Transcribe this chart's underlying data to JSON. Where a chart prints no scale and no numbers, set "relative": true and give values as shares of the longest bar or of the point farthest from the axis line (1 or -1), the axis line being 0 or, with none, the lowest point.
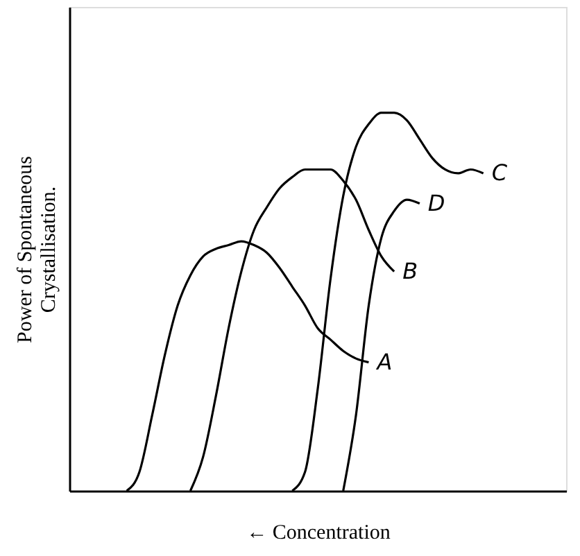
{
  "chart_data": {
    "type": "line",
    "relative": true,
    "xlabel": "← Concentration",
    "ylabel": "Power of Spontaneous\nCrystallisation.",
    "marker": "none",
    "line_style": "solid",
    "categories": [
      null,
      null,
      null,
      null,
      null,
      null,
      null,
      null,
      null,
      null,
      null,
      null,
      null,
      null,
      null,
      null,
      null,
      null,
      null,
      null,
      null,
      null,
      null,
      null,
      null,
      null,
      null,
      null,
      null,
      null,
      null,
      null,
      null,
      null,
      null,
      null,
      null,
      null,
      null
    ],
    "series": [
      {
        "name": "A",
        "color": "#000000",
        "values": [
          null,
          null,
          null,
          null,
          0,
          0.05,
          0.2,
          0.36,
          0.49,
          0.57,
          0.62,
          0.64,
          0.65,
          0.66,
          0.65,
          0.63,
          0.59,
          0.54,
          0.49,
          0.43,
          0.4,
          0.37,
          0.35,
          0.34,
          null,
          null,
          null,
          null,
          null,
          null,
          null,
          null,
          null,
          null,
          null,
          null,
          null,
          null,
          null
        ]
      },
      {
        "name": "B",
        "color": "#000000",
        "values": [
          null,
          null,
          null,
          null,
          null,
          null,
          null,
          null,
          null,
          0,
          0.09,
          0.25,
          0.43,
          0.58,
          0.69,
          0.75,
          0.8,
          0.83,
          0.85,
          0.85,
          0.85,
          0.82,
          0.77,
          0.69,
          0.62,
          0.58,
          null,
          null,
          null,
          null,
          null,
          null,
          null,
          null,
          null,
          null,
          null,
          null,
          null
        ]
      },
      {
        "name": "C",
        "color": "#000000",
        "values": [
          null,
          null,
          null,
          null,
          null,
          null,
          null,
          null,
          null,
          null,
          null,
          null,
          null,
          null,
          null,
          null,
          null,
          0,
          0.05,
          0.27,
          0.56,
          0.78,
          0.91,
          0.97,
          1.0,
          1.0,
          0.98,
          0.93,
          0.88,
          0.85,
          0.84,
          0.85,
          0.84,
          null,
          null,
          null,
          null,
          null,
          null
        ]
      },
      {
        "name": "D",
        "color": "#000000",
        "values": [
          null,
          null,
          null,
          null,
          null,
          null,
          null,
          null,
          null,
          null,
          null,
          null,
          null,
          null,
          null,
          null,
          null,
          null,
          null,
          null,
          null,
          0,
          0.2,
          0.49,
          0.67,
          0.74,
          0.77,
          0.76,
          null,
          null,
          null,
          null,
          null,
          null,
          null,
          null,
          null,
          null,
          null
        ]
      }
    ]
  }
}
